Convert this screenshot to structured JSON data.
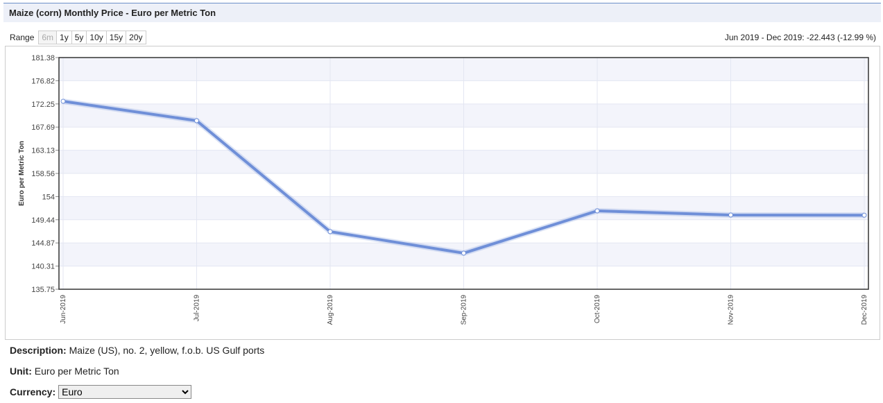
{
  "header": {
    "title": "Maize (corn) Monthly Price - Euro per Metric Ton"
  },
  "range": {
    "label": "Range",
    "options": [
      "6m",
      "1y",
      "5y",
      "10y",
      "15y",
      "20y"
    ]
  },
  "change_summary": "Jun 2019 - Dec 2019: -22.443 (-12.99 %)",
  "chart_data": {
    "type": "line",
    "y_label": "Euro per Metric Ton",
    "categories": [
      "Jun-2019",
      "Jul-2019",
      "Aug-2019",
      "Sep-2019",
      "Oct-2019",
      "Nov-2019",
      "Dec-2019"
    ],
    "values": [
      172.77,
      168.95,
      147.09,
      142.86,
      151.19,
      150.37,
      150.33
    ],
    "color": "#6f8fd8",
    "ylim": [
      135.75,
      181.38
    ],
    "yticks": [
      135.75,
      140.31,
      144.87,
      149.44,
      154,
      158.56,
      163.13,
      167.69,
      172.25,
      176.82,
      181.38
    ],
    "grid": true
  },
  "description": {
    "label": "Description:",
    "text": "Maize (US), no. 2, yellow, f.o.b. US Gulf ports"
  },
  "unit": {
    "label": "Unit:",
    "text": "Euro per Metric Ton"
  },
  "currency": {
    "label": "Currency:",
    "selected": "Euro"
  }
}
